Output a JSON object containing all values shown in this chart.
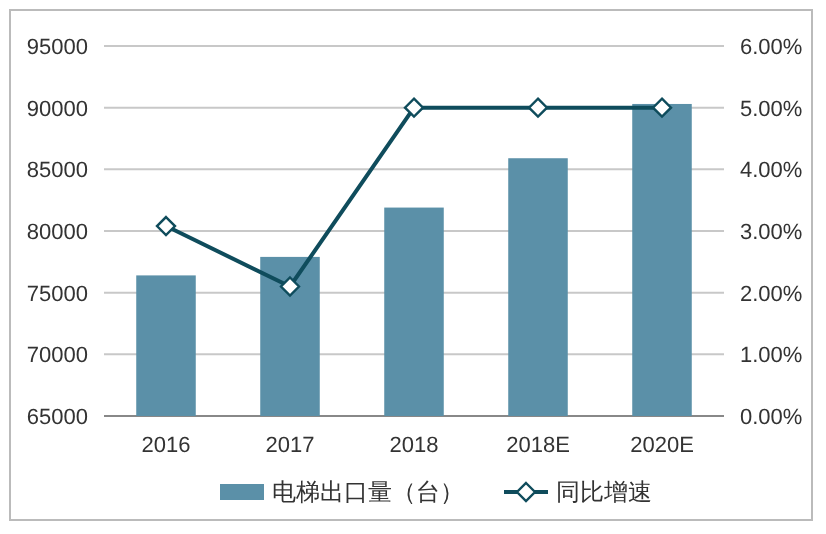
{
  "chart_data": {
    "type": "bar",
    "categories": [
      "2016",
      "2017",
      "2018",
      "2018E",
      "2020E"
    ],
    "series": [
      {
        "name": "电梯出口量（台）",
        "color": "#5b90a8",
        "values": [
          76400,
          77900,
          81900,
          85900,
          90300
        ]
      },
      {
        "name": "同比增速",
        "type": "line",
        "axis": "y2",
        "color": "#0f4c5c",
        "marker": "diamond",
        "values": [
          3.08,
          2.1,
          5.0,
          5.0,
          5.0
        ]
      }
    ],
    "ylim": [
      65000,
      95000
    ],
    "yticks": [
      65000,
      70000,
      75000,
      80000,
      85000,
      90000,
      95000
    ],
    "y2lim": [
      0,
      6
    ],
    "y2ticks": [
      {
        "value": 0,
        "label": "0.00%"
      },
      {
        "value": 1,
        "label": "1.00%"
      },
      {
        "value": 2,
        "label": "2.00%"
      },
      {
        "value": 3,
        "label": "3.00%"
      },
      {
        "value": 4,
        "label": "4.00%"
      },
      {
        "value": 5,
        "label": "5.00%"
      },
      {
        "value": 6,
        "label": "6.00%"
      }
    ],
    "grid": "y",
    "legend": "bottom"
  }
}
